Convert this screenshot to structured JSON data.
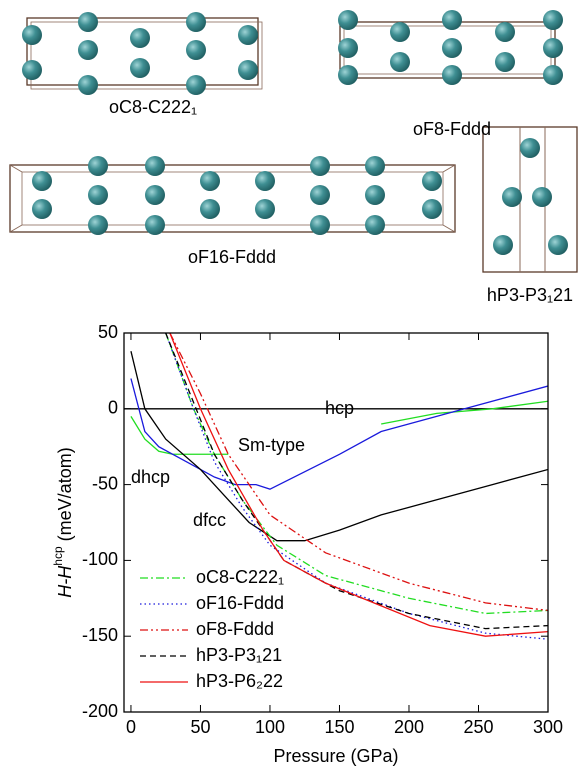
{
  "structures": [
    {
      "label": "oC8-C222₁"
    },
    {
      "label": "oF8-Fddd"
    },
    {
      "label": "oF16-Fddd"
    },
    {
      "label": "hP3-P3₁21"
    }
  ],
  "chart_data": {
    "type": "line",
    "xlabel": "Pressure (GPa)",
    "ylabel": {
      "main": "H-H",
      "sup": "hcp",
      "unit": "(meV/atom)"
    },
    "xlim": [
      -5,
      300
    ],
    "ylim": [
      -200,
      50
    ],
    "xticks": [
      0,
      50,
      100,
      150,
      200,
      250,
      300
    ],
    "yticks": [
      -200,
      -150,
      -100,
      -50,
      0,
      50
    ],
    "legend": "lower left",
    "annotated_series": [
      {
        "name": "hcp",
        "color": "#000000",
        "x": [
          -5,
          300
        ],
        "values": [
          0,
          0
        ]
      },
      {
        "name": "Sm-type",
        "color": "#22dd22",
        "x": [
          0,
          10,
          20,
          30,
          50,
          70,
          140,
          180,
          220,
          260,
          300
        ],
        "values": [
          -5,
          -20,
          -28,
          -30,
          -30,
          -30,
          null,
          -10,
          -3,
          0,
          5
        ]
      },
      {
        "name": "dhcp",
        "color": "#1a1adc",
        "x": [
          0,
          10,
          20,
          40,
          60,
          75,
          90,
          100,
          150,
          180,
          240,
          300
        ],
        "values": [
          20,
          -15,
          -25,
          -35,
          -45,
          -50,
          -50,
          -53,
          -30,
          -15,
          0,
          15
        ]
      },
      {
        "name": "dfcc",
        "color": "#000000",
        "x": [
          0,
          10,
          25,
          50,
          70,
          85,
          105,
          125,
          150,
          180,
          220,
          260,
          300
        ],
        "values": [
          38,
          0,
          -20,
          -40,
          -60,
          -75,
          -87,
          -87,
          -80,
          -70,
          -60,
          -50,
          -40
        ]
      }
    ],
    "series": [
      {
        "name": "oC8-C222₁",
        "color": "#22dd22",
        "dash": "8 3 2 3",
        "x": [
          25,
          45,
          60,
          80,
          105,
          140,
          200,
          255,
          300
        ],
        "values": [
          50,
          0,
          -30,
          -60,
          -90,
          -110,
          -125,
          -135,
          -133
        ]
      },
      {
        "name": "oF16-Fddd",
        "color": "#1a1adc",
        "dash": "1.5 3",
        "x": [
          25,
          45,
          60,
          80,
          100,
          140,
          200,
          255,
          300
        ],
        "values": [
          50,
          0,
          -35,
          -65,
          -90,
          -115,
          -135,
          -148,
          -152
        ]
      },
      {
        "name": "oF8-Fddd",
        "color": "#dd1111",
        "dash": "8 3 2 3 2 3",
        "x": [
          28,
          50,
          70,
          100,
          140,
          200,
          255,
          300
        ],
        "values": [
          50,
          10,
          -30,
          -70,
          -95,
          -115,
          -128,
          -133
        ]
      },
      {
        "name": "hP3-P3₁21",
        "color": "#000000",
        "dash": "6 4",
        "x": [
          25,
          60,
          80,
          110,
          150,
          200,
          255,
          300
        ],
        "values": [
          50,
          -30,
          -60,
          -100,
          -120,
          -135,
          -145,
          -143
        ]
      },
      {
        "name": "hP3-P6₂22",
        "color": "#ee1111",
        "dash": "",
        "x": [
          28,
          50,
          70,
          95,
          110,
          140,
          180,
          215,
          255,
          300
        ],
        "values": [
          50,
          0,
          -40,
          -80,
          -100,
          -115,
          -130,
          -143,
          -150,
          -147
        ]
      }
    ]
  }
}
